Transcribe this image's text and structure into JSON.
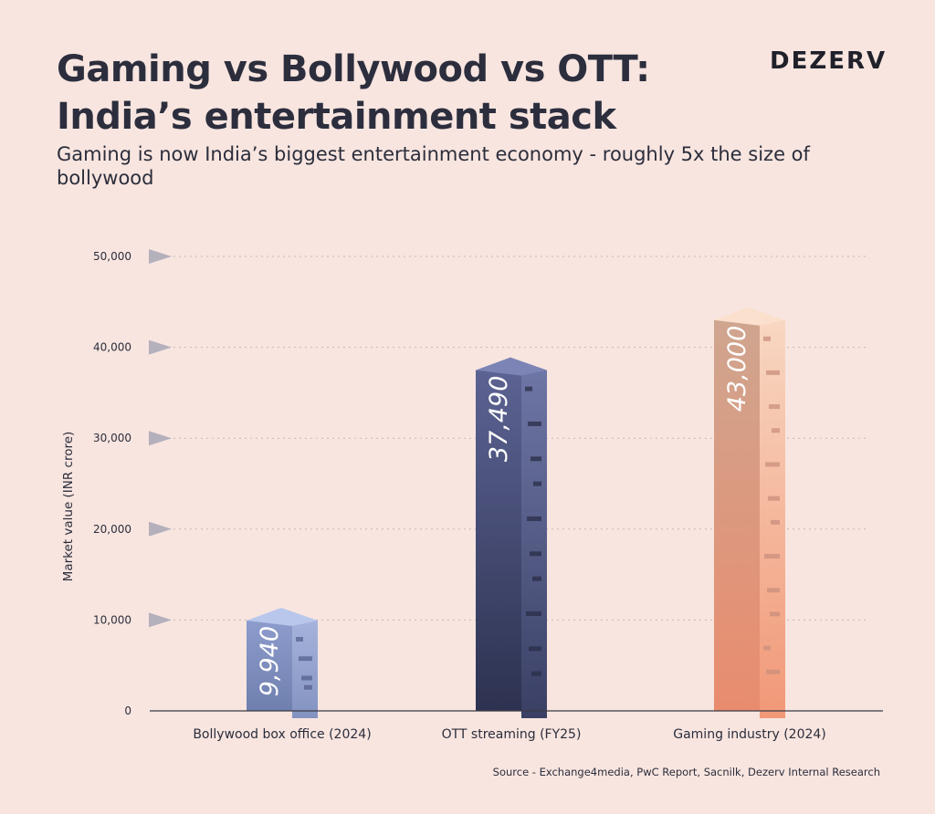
{
  "brand": "DEZERV",
  "title_line1": "Gaming vs Bollywood vs OTT:",
  "title_line2": "India’s entertainment stack",
  "subtitle": "Gaming is now India’s biggest entertainment economy - roughly 5x the size of bollywood",
  "source": "Source - Exchange4media, PwC Report, Sacnilk, Dezerv Internal Research",
  "colors": {
    "background": "#f8e5e0",
    "bollywood": "#8fa3cf",
    "ott": "#3d4266",
    "gaming": "#f0b29a",
    "axis": "#3a3a44",
    "grid_marker": "#b4b0bc"
  },
  "chart_data": {
    "type": "bar",
    "categories": [
      "Bollywood box office (2024)",
      "OTT streaming (FY25)",
      "Gaming industry (2024)"
    ],
    "values": [
      9940,
      37490,
      43000
    ],
    "value_labels": [
      "9,940",
      "37,490",
      "43,000"
    ],
    "ylabel": "Market value (INR crore)",
    "ylim": [
      0,
      50000
    ],
    "yticks": [
      0,
      10000,
      20000,
      30000,
      40000,
      50000
    ],
    "ytick_labels": [
      "0",
      "10,000",
      "20,000",
      "30,000",
      "40,000",
      "50,000"
    ],
    "grid": true
  }
}
